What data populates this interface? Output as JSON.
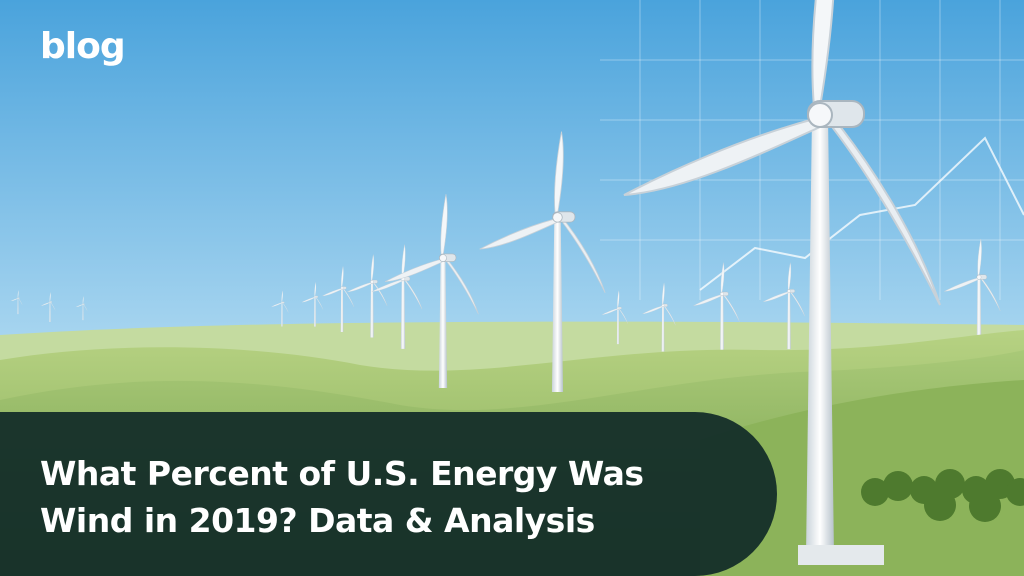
{
  "brand": "blog",
  "title_lines": [
    "What Percent of U.S. Energy Was",
    "Wind in 2019? Data & Analysis"
  ]
}
